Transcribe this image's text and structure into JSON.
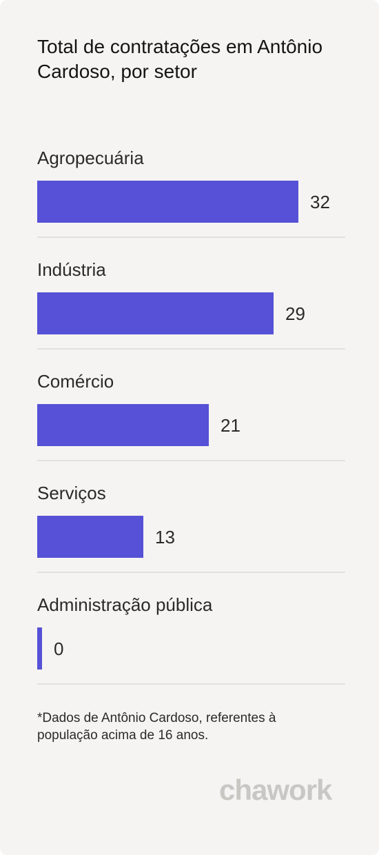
{
  "card": {
    "title": "Total de contratações em Antônio Cardoso, por setor",
    "footnote": "*Dados de Antônio Cardoso, referentes à população acima de 16 anos.",
    "logo_text": "chawork"
  },
  "colors": {
    "bar": "#5651d6",
    "background": "#f5f4f2",
    "divider": "#e3e1de",
    "logo": "#c9c7c3"
  },
  "chart_data": {
    "type": "bar",
    "orientation": "horizontal",
    "title": "Total de contratações em Antônio Cardoso, por setor",
    "categories": [
      "Agropecuária",
      "Indústria",
      "Comércio",
      "Serviços",
      "Administração pública"
    ],
    "values": [
      32,
      29,
      21,
      13,
      0
    ],
    "xlim": [
      0,
      32
    ],
    "grid": false,
    "legend": "none"
  }
}
